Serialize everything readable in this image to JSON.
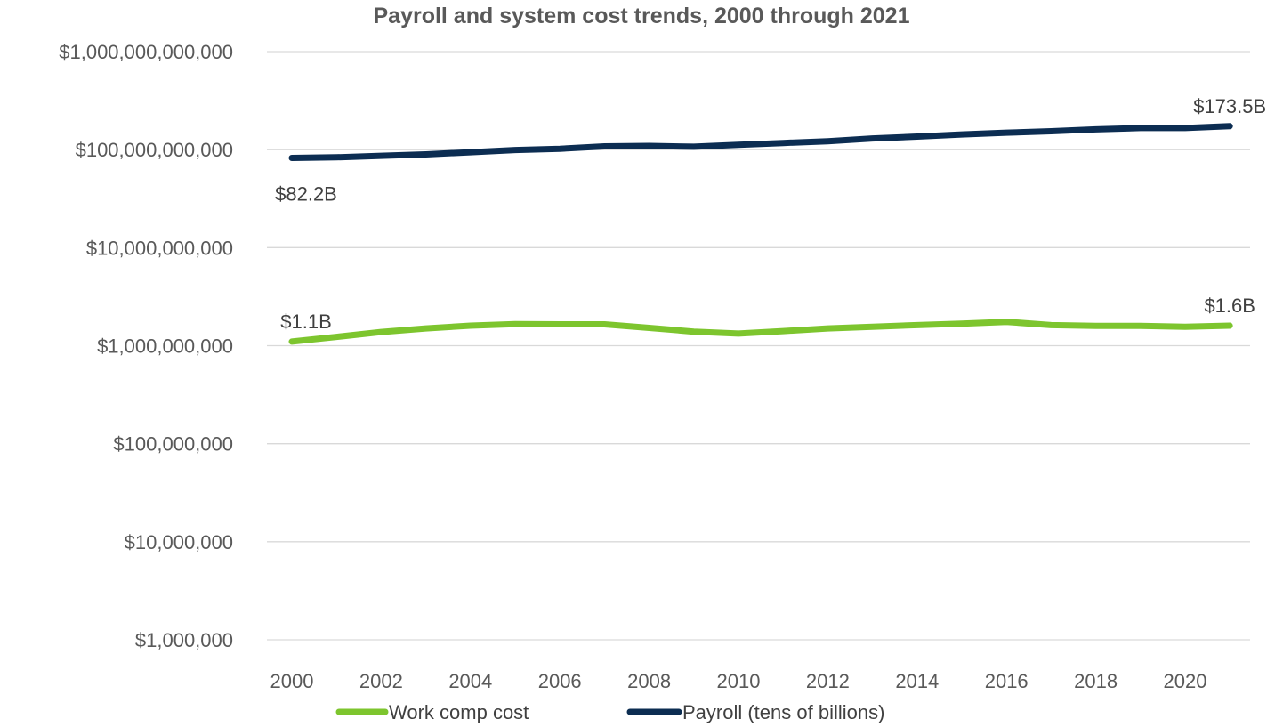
{
  "chart_data": {
    "type": "line",
    "title": "Payroll and system cost trends, 2000 through 2021",
    "xlabel": "",
    "ylabel": "",
    "y_scale": "log",
    "ylim": [
      1000000,
      1000000000000
    ],
    "grid": true,
    "legend_position": "bottom",
    "x": [
      2000,
      2001,
      2002,
      2003,
      2004,
      2005,
      2006,
      2007,
      2008,
      2009,
      2010,
      2011,
      2012,
      2013,
      2014,
      2015,
      2016,
      2017,
      2018,
      2019,
      2020,
      2021
    ],
    "x_tick_labels": [
      "2000",
      "2002",
      "2004",
      "2006",
      "2008",
      "2010",
      "2012",
      "2014",
      "2016",
      "2018",
      "2020"
    ],
    "y_tick_labels": [
      "$1,000,000,000,000",
      "$100,000,000,000",
      "$10,000,000,000",
      "$1,000,000,000",
      "$100,000,000",
      "$10,000,000",
      "$1,000,000"
    ],
    "y_tick_values": [
      1000000000000,
      100000000000,
      10000000000,
      1000000000,
      100000000,
      10000000,
      1000000
    ],
    "series": [
      {
        "name": "Work comp cost",
        "color": "#7dc52e",
        "values": [
          1100000000,
          1230000000,
          1380000000,
          1500000000,
          1600000000,
          1660000000,
          1650000000,
          1650000000,
          1520000000,
          1390000000,
          1330000000,
          1410000000,
          1500000000,
          1560000000,
          1620000000,
          1680000000,
          1750000000,
          1620000000,
          1590000000,
          1590000000,
          1560000000,
          1600000000
        ],
        "labels": [
          {
            "index": 0,
            "text": "$1.1B",
            "position": "above"
          },
          {
            "index": 21,
            "text": "$1.6B",
            "position": "above"
          }
        ]
      },
      {
        "name": "Payroll (tens of billions)",
        "color": "#0c2d52",
        "values": [
          82200000000,
          83500000000,
          86500000000,
          89500000000,
          94000000000,
          99000000000,
          102000000000,
          108000000000,
          109000000000,
          107000000000,
          112000000000,
          117000000000,
          122000000000,
          130000000000,
          136000000000,
          143000000000,
          149000000000,
          154000000000,
          161000000000,
          166000000000,
          166000000000,
          173500000000
        ],
        "labels": [
          {
            "index": 0,
            "text": "$82.2B",
            "position": "below"
          },
          {
            "index": 21,
            "text": "$173.5B",
            "position": "above"
          }
        ]
      }
    ]
  }
}
